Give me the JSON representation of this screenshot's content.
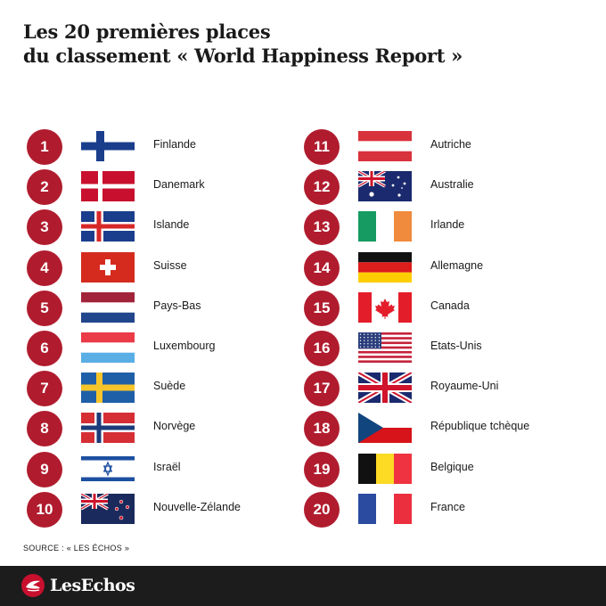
{
  "title": {
    "line1": "Les 20 premières places",
    "line2": "du classement « World Happiness Report »"
  },
  "rankings": [
    {
      "rank": "1",
      "country": "Finlande",
      "flag": "finland-flag"
    },
    {
      "rank": "2",
      "country": "Danemark",
      "flag": "denmark-flag"
    },
    {
      "rank": "3",
      "country": "Islande",
      "flag": "iceland-flag"
    },
    {
      "rank": "4",
      "country": "Suisse",
      "flag": "switzerland-flag"
    },
    {
      "rank": "5",
      "country": "Pays-Bas",
      "flag": "netherlands-flag"
    },
    {
      "rank": "6",
      "country": "Luxembourg",
      "flag": "luxembourg-flag"
    },
    {
      "rank": "7",
      "country": "Suède",
      "flag": "sweden-flag"
    },
    {
      "rank": "8",
      "country": "Norvège",
      "flag": "norway-flag"
    },
    {
      "rank": "9",
      "country": "Israël",
      "flag": "israel-flag"
    },
    {
      "rank": "10",
      "country": "Nouvelle-Zélande",
      "flag": "new-zealand-flag"
    },
    {
      "rank": "11",
      "country": "Autriche",
      "flag": "austria-flag"
    },
    {
      "rank": "12",
      "country": "Australie",
      "flag": "australia-flag"
    },
    {
      "rank": "13",
      "country": "Irlande",
      "flag": "ireland-flag"
    },
    {
      "rank": "14",
      "country": "Allemagne",
      "flag": "germany-flag"
    },
    {
      "rank": "15",
      "country": "Canada",
      "flag": "canada-flag"
    },
    {
      "rank": "16",
      "country": "Etats-Unis",
      "flag": "usa-flag"
    },
    {
      "rank": "17",
      "country": "Royaume-Uni",
      "flag": "uk-flag"
    },
    {
      "rank": "18",
      "country": "République tchèque",
      "flag": "czech-flag"
    },
    {
      "rank": "19",
      "country": "Belgique",
      "flag": "belgium-flag"
    },
    {
      "rank": "20",
      "country": "France",
      "flag": "france-flag"
    }
  ],
  "source": "SOURCE : « LES ÉCHOS »",
  "footer": {
    "logo_text": "LesEchos"
  },
  "colors": {
    "badge": "#b01c2e",
    "footer": "#1c1c1c"
  }
}
